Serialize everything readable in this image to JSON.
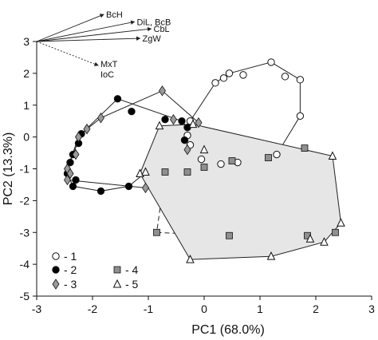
{
  "chart_data": {
    "type": "scatter",
    "title": "",
    "xlabel": "PC1 (68.0%)",
    "ylabel": "PC2 (13.3%)",
    "xlim": [
      -3,
      3
    ],
    "ylim": [
      -5,
      3
    ],
    "xticks": [
      "-3",
      "-2",
      "-1",
      "0",
      "1",
      "2",
      "3"
    ],
    "yticks": [
      "-5",
      "-4",
      "-3",
      "-2",
      "-1",
      "0",
      "1",
      "2",
      "3"
    ],
    "grid": false,
    "legend_position": "bottom-left",
    "series": [
      {
        "name": "1",
        "marker": "circle-open",
        "color": "#ffffff",
        "hull": "solid",
        "fill": "none",
        "points": [
          [
            0.45,
            2.0
          ],
          [
            1.2,
            2.35
          ],
          [
            1.72,
            1.8
          ],
          [
            1.72,
            0.66
          ],
          [
            1.3,
            -0.55
          ],
          [
            0.6,
            -0.8
          ],
          [
            0.3,
            -0.85
          ],
          [
            -0.05,
            -0.7
          ],
          [
            -0.25,
            -0.25
          ],
          [
            -0.3,
            0.05
          ],
          [
            -0.25,
            0.5
          ],
          [
            0.2,
            1.7
          ],
          [
            0.35,
            1.85
          ],
          [
            0.7,
            1.95
          ],
          [
            1.45,
            1.9
          ]
        ]
      },
      {
        "name": "2",
        "marker": "circle-filled",
        "color": "#000000",
        "hull": "solid",
        "fill": "none",
        "points": [
          [
            -1.55,
            1.2
          ],
          [
            -0.4,
            0.5
          ],
          [
            -0.3,
            0.3
          ],
          [
            -0.35,
            -0.1
          ],
          [
            -1.35,
            -1.55
          ],
          [
            -1.85,
            -1.7
          ],
          [
            -2.35,
            -1.55
          ],
          [
            -2.45,
            -1.15
          ],
          [
            -2.4,
            -0.8
          ],
          [
            -2.35,
            -0.55
          ],
          [
            -2.25,
            -0.2
          ],
          [
            -2.2,
            0.1
          ],
          [
            -1.3,
            0.8
          ],
          [
            -0.7,
            0.55
          ],
          [
            -2.3,
            -1.35
          ]
        ]
      },
      {
        "name": "3",
        "marker": "diamond",
        "color": "#999999",
        "hull": "solid",
        "fill": "none",
        "points": [
          [
            -0.75,
            1.45
          ],
          [
            -0.55,
            0.55
          ],
          [
            -0.1,
            0.45
          ],
          [
            -1.05,
            -1.6
          ],
          [
            -2.45,
            -1.35
          ],
          [
            -2.45,
            -1.0
          ],
          [
            -2.3,
            -0.55
          ],
          [
            -2.25,
            0.0
          ],
          [
            -2.1,
            0.25
          ],
          [
            -1.85,
            0.6
          ],
          [
            -0.3,
            -0.4
          ],
          [
            -2.4,
            -1.15
          ]
        ]
      },
      {
        "name": "4",
        "marker": "square",
        "color": "#909090",
        "hull": "dashed",
        "fill": "none",
        "points": [
          [
            -0.7,
            -1.1
          ],
          [
            0.0,
            -0.95
          ],
          [
            0.5,
            -0.75
          ],
          [
            1.15,
            -0.65
          ],
          [
            1.8,
            -0.35
          ],
          [
            2.35,
            -3.0
          ],
          [
            1.85,
            -3.1
          ],
          [
            0.45,
            -3.1
          ],
          [
            -0.85,
            -3.0
          ],
          [
            -0.3,
            -1.1
          ]
        ]
      },
      {
        "name": "5",
        "marker": "triangle-open",
        "color": "#ffffff",
        "hull": "solid",
        "fill": "#e6e6e6",
        "points": [
          [
            -0.8,
            0.35
          ],
          [
            -0.2,
            0.4
          ],
          [
            2.3,
            -0.6
          ],
          [
            2.45,
            -2.7
          ],
          [
            2.15,
            -3.3
          ],
          [
            1.2,
            -3.75
          ],
          [
            -0.25,
            -3.85
          ],
          [
            -1.15,
            -1.15
          ],
          [
            -1.05,
            -1.1
          ],
          [
            0.0,
            -0.4
          ],
          [
            1.9,
            -3.2
          ]
        ]
      }
    ],
    "legend": [
      {
        "marker": "circle-open",
        "label": "- 1"
      },
      {
        "marker": "circle-filled",
        "label": "- 2"
      },
      {
        "marker": "diamond",
        "label": "- 3"
      },
      {
        "marker": "square",
        "label": "- 4"
      },
      {
        "marker": "triangle-open",
        "label": "- 5"
      }
    ],
    "loading_vectors": {
      "origin": [
        -3,
        3
      ],
      "items": [
        {
          "label": "BcH",
          "end": [
            -1.8,
            3.85
          ],
          "style": "solid"
        },
        {
          "label": "DiL, BcB",
          "end": [
            -1.25,
            3.62
          ],
          "style": "solid"
        },
        {
          "label": "CbL",
          "end": [
            -0.95,
            3.4
          ],
          "style": "solid"
        },
        {
          "label": "ZgW",
          "end": [
            -1.15,
            3.1
          ],
          "style": "solid"
        },
        {
          "label": "MxT\nIoC",
          "end": [
            -1.9,
            2.25
          ],
          "style": "dotted"
        }
      ]
    }
  }
}
